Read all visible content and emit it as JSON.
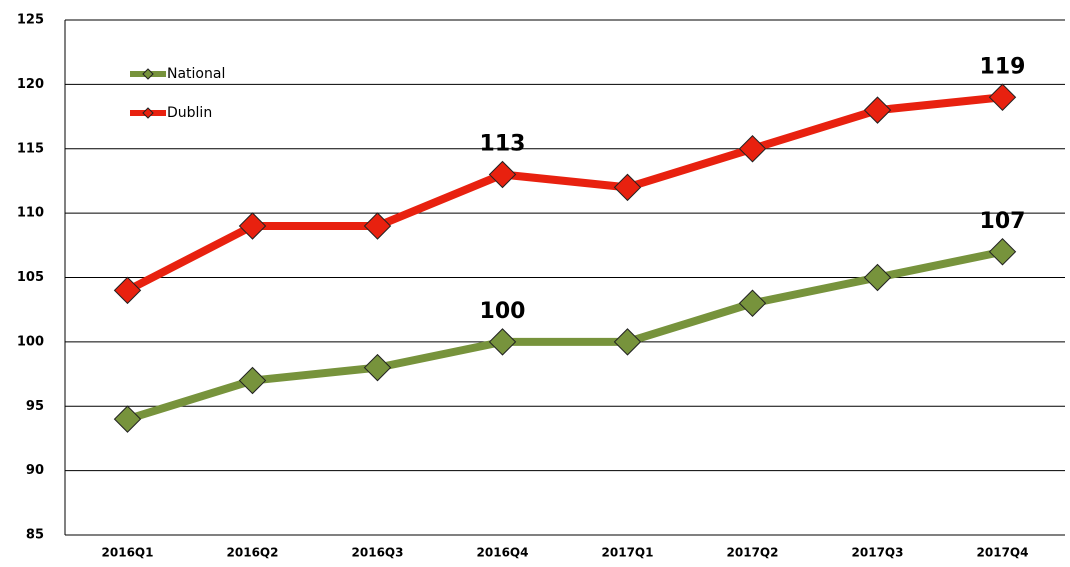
{
  "chart_data": {
    "type": "line",
    "categories": [
      "2016Q1",
      "2016Q2",
      "2016Q3",
      "2016Q4",
      "2017Q1",
      "2017Q2",
      "2017Q3",
      "2017Q4"
    ],
    "series": [
      {
        "name": "National",
        "color": "#77933c",
        "values": [
          94,
          97,
          98,
          100,
          100,
          103,
          105,
          107
        ],
        "value_labels": [
          null,
          null,
          null,
          "100",
          null,
          null,
          null,
          "107"
        ]
      },
      {
        "name": "Dublin",
        "color": "#e8210f",
        "values": [
          104,
          109,
          109,
          113,
          112,
          115,
          118,
          119
        ],
        "value_labels": [
          null,
          null,
          null,
          "113",
          null,
          null,
          null,
          "119"
        ]
      }
    ],
    "ylim": [
      85,
      125
    ],
    "yticks": [
      85,
      90,
      95,
      100,
      105,
      110,
      115,
      120,
      125
    ],
    "grid": true,
    "legend": "upper left"
  }
}
